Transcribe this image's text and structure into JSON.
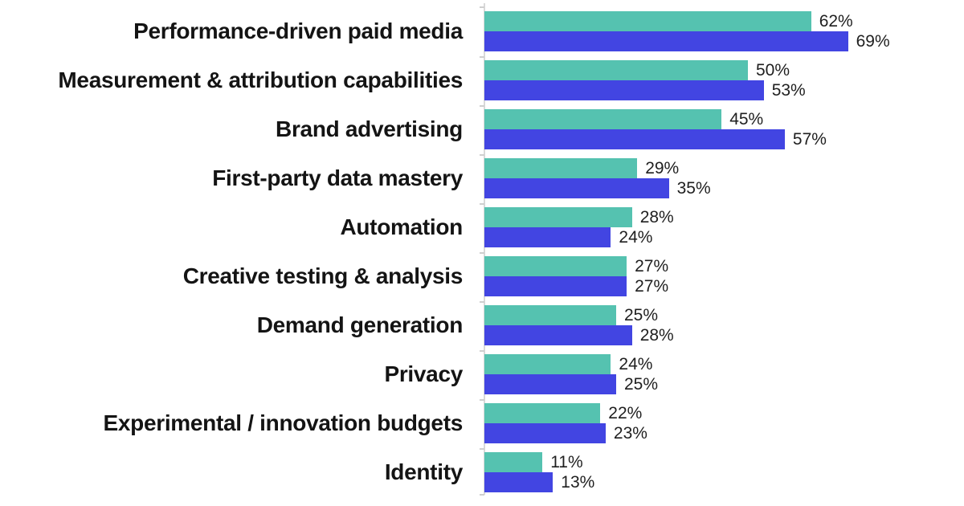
{
  "chart_data": {
    "type": "bar",
    "orientation": "horizontal",
    "grid": false,
    "legend": "none",
    "xlim": [
      0,
      100
    ],
    "value_suffix": "%",
    "categories": [
      "Performance-driven paid media",
      "Measurement & attribution capabilities",
      "Brand advertising",
      "First-party data mastery",
      "Automation",
      "Creative testing & analysis",
      "Demand generation",
      "Privacy",
      "Experimental / innovation budgets",
      "Identity"
    ],
    "series": [
      {
        "name": "teal-series",
        "color": "#55C2B0",
        "values": [
          62,
          50,
          45,
          29,
          28,
          27,
          25,
          24,
          22,
          11
        ],
        "labels": [
          "62%",
          "50%",
          "45%",
          "29%",
          "28%",
          "27%",
          "25%",
          "24%",
          "22%",
          "11%"
        ]
      },
      {
        "name": "blue-series",
        "color": "#4245E2",
        "values": [
          69,
          53,
          57,
          35,
          24,
          27,
          28,
          25,
          23,
          13
        ],
        "labels": [
          "69%",
          "53%",
          "57%",
          "35%",
          "24%",
          "27%",
          "28%",
          "25%",
          "23%",
          "13%"
        ]
      }
    ],
    "colors": {
      "teal": "#55C2B0",
      "blue": "#4245E2",
      "axis_line": "#D9D9D9",
      "category_text": "#141414",
      "value_text": "#1F1F1F"
    }
  }
}
